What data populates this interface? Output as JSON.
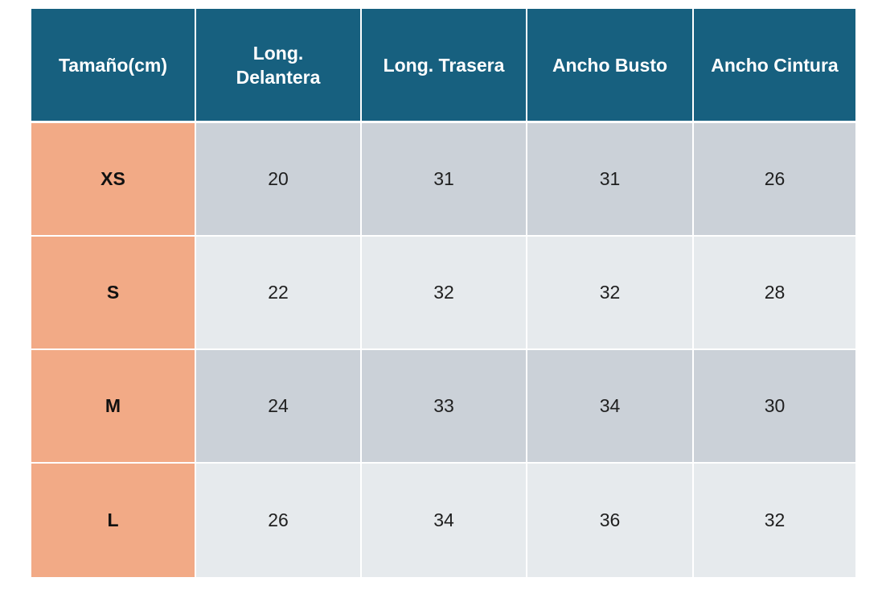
{
  "table": {
    "headers": [
      "Tamaño(cm)",
      "Long. Delantera",
      "Long. Trasera",
      "Ancho Busto",
      "Ancho Cintura"
    ],
    "rows": [
      {
        "size": "XS",
        "values": [
          "20",
          "31",
          "31",
          "26"
        ]
      },
      {
        "size": "S",
        "values": [
          "22",
          "32",
          "32",
          "28"
        ]
      },
      {
        "size": "M",
        "values": [
          "24",
          "33",
          "34",
          "30"
        ]
      },
      {
        "size": "L",
        "values": [
          "26",
          "34",
          "36",
          "32"
        ]
      }
    ]
  },
  "colors": {
    "header_bg": "#17607f",
    "header_text": "#ffffff",
    "size_label_bg": "#f2aa86",
    "row_dark_bg": "#cbd1d8",
    "row_light_bg": "#e6eaed"
  }
}
